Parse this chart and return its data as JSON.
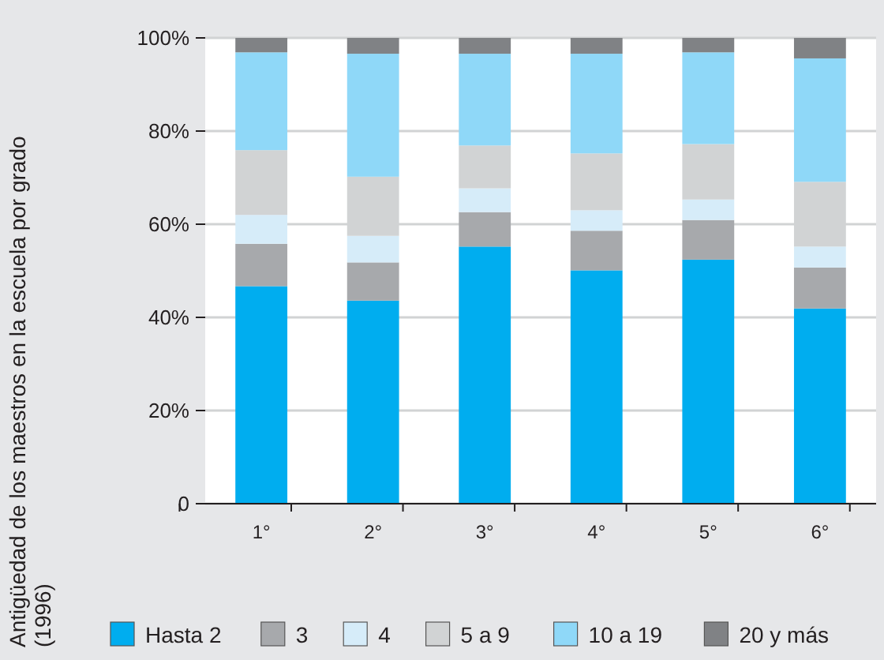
{
  "chart_data": {
    "type": "bar",
    "stacked": true,
    "ylabel": "Antigüedad de los maestros en la escuela por grado (1996)",
    "categories": [
      "1°",
      "2°",
      "3°",
      "4°",
      "5°",
      "6°"
    ],
    "series": [
      {
        "name": "Hasta 2",
        "color": "#00adef",
        "values": [
          46.7,
          43.6,
          55.2,
          50.1,
          52.4,
          41.9
        ]
      },
      {
        "name": "3",
        "color": "#a7a9ac",
        "values": [
          9.1,
          8.2,
          7.4,
          8.5,
          8.5,
          8.8
        ]
      },
      {
        "name": "4",
        "color": "#d6ecf9",
        "values": [
          6.2,
          5.7,
          5.1,
          4.4,
          4.4,
          4.5
        ]
      },
      {
        "name": "5 a 9",
        "color": "#d1d3d4",
        "values": [
          13.9,
          12.7,
          9.2,
          12.2,
          11.9,
          13.9
        ]
      },
      {
        "name": "10 a 19",
        "color": "#8fd8f8",
        "values": [
          21.0,
          26.4,
          19.7,
          21.4,
          19.7,
          26.5
        ]
      },
      {
        "name": "20 y más",
        "color": "#808285",
        "values": [
          3.1,
          3.4,
          3.4,
          3.4,
          3.1,
          4.4
        ]
      }
    ],
    "ylim": [
      0,
      100
    ],
    "yticks": [
      0,
      {
        "value": 20,
        "label": "20%"
      },
      {
        "value": 40,
        "label": "40%"
      },
      {
        "value": 60,
        "label": "60%"
      },
      {
        "value": 80,
        "label": "80%"
      },
      {
        "value": 100,
        "label": "100%"
      }
    ],
    "grid": "y",
    "legend": "bottom"
  }
}
